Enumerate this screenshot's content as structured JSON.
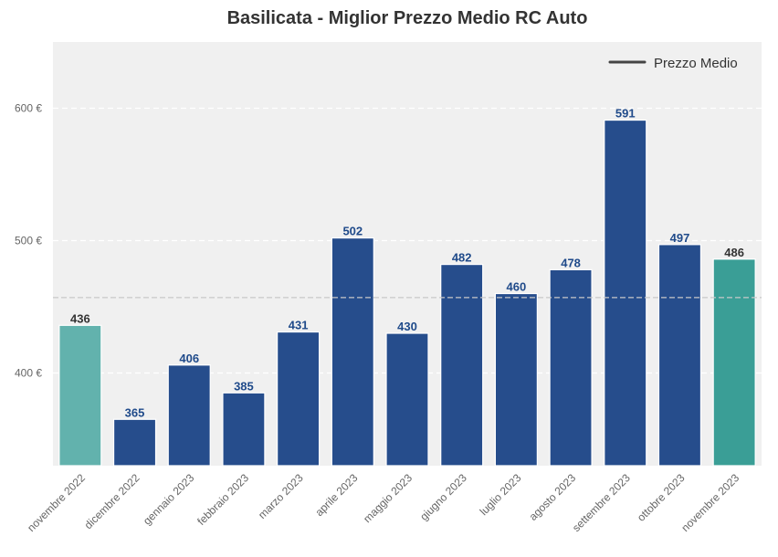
{
  "chart_data": {
    "type": "bar",
    "title": "Basilicata - Miglior Prezzo Medio RC Auto",
    "xlabel": "",
    "ylabel": "",
    "categories": [
      "novembre 2022",
      "dicembre 2022",
      "gennaio 2023",
      "febbraio 2023",
      "marzo 2023",
      "aprile 2023",
      "maggio 2023",
      "giugno 2023",
      "luglio 2023",
      "agosto 2023",
      "settembre 2023",
      "ottobre 2023",
      "novembre 2023"
    ],
    "values": [
      436,
      365,
      406,
      385,
      431,
      502,
      430,
      482,
      460,
      478,
      591,
      497,
      486
    ],
    "value_labels": [
      "436",
      "365",
      "406",
      "385",
      "431",
      "502",
      "430",
      "482",
      "460",
      "478",
      "591",
      "497",
      "486"
    ],
    "yticks": [
      400,
      500,
      600
    ],
    "ytick_labels": [
      "400 €",
      "500 €",
      "600 €"
    ],
    "ylim": [
      330,
      650
    ],
    "average_line": 457,
    "grid": true,
    "legend": {
      "position": "top-right",
      "entries": [
        "Prezzo Medio"
      ]
    },
    "colors": {
      "bar_default": "#264d8c",
      "bar_first": "#62b2ad",
      "bar_last": "#3a9e96",
      "label_default": "#1f4a8a",
      "label_endpoints": "#333333",
      "average_line": "#c8c8c8",
      "plot_background": "#f0f0f0"
    }
  }
}
